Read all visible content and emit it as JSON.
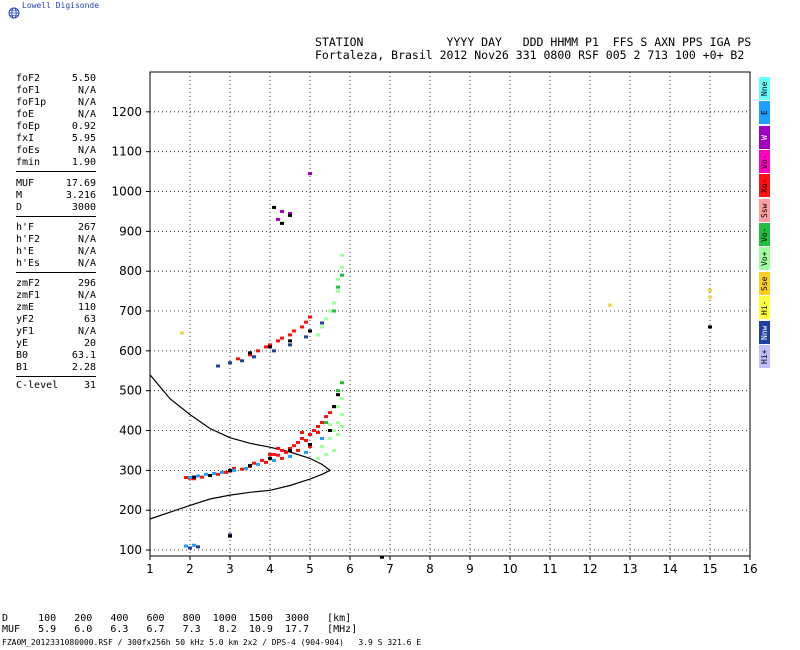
{
  "brand": {
    "name": "Lowell Digisonde",
    "icon": "globe-icon"
  },
  "header": {
    "line1": "STATION            YYYY DAY   DDD HHMM P1  FFS S AXN PPS IGA PS",
    "line2": "Fortaleza, Brasil 2012 Nov26 331 0800 RSF 005 2 713 100 +0+ B2"
  },
  "params": {
    "group1": [
      {
        "key": "foF2",
        "value": "5.50"
      },
      {
        "key": "foF1",
        "value": "N/A"
      },
      {
        "key": "foF1p",
        "value": "N/A"
      },
      {
        "key": "foE",
        "value": "N/A"
      },
      {
        "key": "foEp",
        "value": "0.92"
      },
      {
        "key": "fxI",
        "value": "5.95"
      },
      {
        "key": "foEs",
        "value": "N/A"
      },
      {
        "key": "fmin",
        "value": "1.90"
      }
    ],
    "group2": [
      {
        "key": "MUF",
        "value": "17.69"
      },
      {
        "key": "M",
        "value": "3.216"
      },
      {
        "key": "D",
        "value": "3000"
      }
    ],
    "group3": [
      {
        "key": "h'F",
        "value": "267"
      },
      {
        "key": "h'F2",
        "value": "N/A"
      },
      {
        "key": "h'E",
        "value": "N/A"
      },
      {
        "key": "h'Es",
        "value": "N/A"
      }
    ],
    "group4": [
      {
        "key": "zmF2",
        "value": "296"
      },
      {
        "key": "zmF1",
        "value": "N/A"
      },
      {
        "key": "zmE",
        "value": "110"
      },
      {
        "key": "yF2",
        "value": "63"
      },
      {
        "key": "yF1",
        "value": "N/A"
      },
      {
        "key": "yE",
        "value": "20"
      },
      {
        "key": "B0",
        "value": "63.1"
      },
      {
        "key": "B1",
        "value": "2.28"
      }
    ],
    "group5": [
      {
        "key": "C-level",
        "value": "31"
      }
    ]
  },
  "legend": [
    {
      "label": "Nne",
      "color": "#66ffff"
    },
    {
      "label": "E",
      "color": "#1f9fff"
    },
    {
      "label": "W",
      "color": "#a000c0"
    },
    {
      "label": "Vo-",
      "color": "#ff00c0"
    },
    {
      "label": "Xo-",
      "color": "#ff1010"
    },
    {
      "label": "Ssw",
      "color": "#ff9f9f"
    },
    {
      "label": "Vo-",
      "color": "#1fbf3f"
    },
    {
      "label": "Vo+",
      "color": "#9fff9f"
    },
    {
      "label": "Sse",
      "color": "#ffcf20"
    },
    {
      "label": "Hi-",
      "color": "#ffff3f"
    },
    {
      "label": "Nnw",
      "color": "#1f3f9f"
    },
    {
      "label": "Hi+",
      "color": "#bfbfff"
    }
  ],
  "dmuf": {
    "d_line": "D     100   200   400   600   800  1000  1500  3000   [km]",
    "muf_line": "MUF   5.9   6.0   6.3   6.7   7.3   8.2  10.9  17.7   [MHz]"
  },
  "footer": "FZA0M_2012331080000.RSF / 300fx256h 50 kHz 5.0 km 2x2 / DPS-4 (904-904)   3.9 S 321.6 E",
  "chart_data": {
    "type": "scatter",
    "title": "",
    "xlabel": "",
    "ylabel": "",
    "xlim": [
      1,
      16
    ],
    "ylim": [
      85,
      1300
    ],
    "x_ticks": [
      1,
      2,
      3,
      4,
      5,
      6,
      7,
      8,
      9,
      10,
      11,
      12,
      13,
      14,
      15,
      16
    ],
    "y_ticks": [
      100,
      200,
      300,
      400,
      500,
      600,
      700,
      800,
      900,
      1000,
      1100,
      1200
    ],
    "grid": true,
    "profile_curve": {
      "upper": [
        [
          1.0,
          540
        ],
        [
          1.5,
          480
        ],
        [
          2.0,
          440
        ],
        [
          2.5,
          405
        ],
        [
          3.0,
          382
        ],
        [
          3.5,
          368
        ],
        [
          4.0,
          358
        ],
        [
          4.5,
          346
        ],
        [
          5.0,
          330
        ],
        [
          5.3,
          315
        ],
        [
          5.5,
          300
        ]
      ],
      "lower": [
        [
          1.0,
          178
        ],
        [
          1.5,
          195
        ],
        [
          2.0,
          212
        ],
        [
          2.5,
          228
        ],
        [
          3.0,
          238
        ],
        [
          3.5,
          245
        ],
        [
          4.0,
          250
        ],
        [
          4.5,
          262
        ],
        [
          5.0,
          278
        ],
        [
          5.3,
          290
        ],
        [
          5.5,
          300
        ]
      ]
    },
    "series": [
      {
        "name": "Xo-",
        "color": "#ff1010",
        "points": [
          [
            1.9,
            282
          ],
          [
            2.0,
            280
          ],
          [
            2.1,
            279
          ],
          [
            2.3,
            283
          ],
          [
            2.7,
            290
          ],
          [
            2.9,
            295
          ],
          [
            3.0,
            298
          ],
          [
            3.1,
            305
          ],
          [
            3.3,
            303
          ],
          [
            3.5,
            310
          ],
          [
            3.6,
            318
          ],
          [
            3.8,
            325
          ],
          [
            3.9,
            320
          ],
          [
            4.0,
            330
          ],
          [
            4.1,
            340
          ],
          [
            4.2,
            338
          ],
          [
            4.3,
            350
          ],
          [
            4.4,
            345
          ],
          [
            4.5,
            355
          ],
          [
            4.6,
            362
          ],
          [
            4.7,
            370
          ],
          [
            4.8,
            380
          ],
          [
            4.9,
            375
          ],
          [
            5.0,
            390
          ],
          [
            5.1,
            400
          ],
          [
            5.2,
            410
          ],
          [
            5.3,
            420
          ],
          [
            5.4,
            435
          ],
          [
            5.5,
            445
          ],
          [
            4.0,
            340
          ],
          [
            4.3,
            330
          ],
          [
            4.7,
            350
          ],
          [
            5.0,
            360
          ],
          [
            4.2,
            355
          ],
          [
            4.8,
            395
          ],
          [
            5.2,
            395
          ],
          [
            3.2,
            580
          ],
          [
            3.5,
            590
          ],
          [
            3.7,
            600
          ],
          [
            3.9,
            610
          ],
          [
            4.0,
            615
          ],
          [
            4.2,
            625
          ],
          [
            4.3,
            632
          ],
          [
            4.5,
            640
          ],
          [
            4.6,
            650
          ],
          [
            4.8,
            660
          ],
          [
            4.9,
            672
          ],
          [
            5.0,
            685
          ]
        ]
      },
      {
        "name": "E",
        "color": "#1f9fff",
        "points": [
          [
            2.0,
            282
          ],
          [
            2.2,
            286
          ],
          [
            2.4,
            290
          ],
          [
            2.6,
            292
          ],
          [
            2.8,
            295
          ],
          [
            3.1,
            300
          ],
          [
            3.4,
            305
          ],
          [
            3.7,
            315
          ],
          [
            4.1,
            325
          ],
          [
            4.5,
            335
          ],
          [
            4.9,
            345
          ],
          [
            5.3,
            380
          ],
          [
            1.9,
            110
          ],
          [
            2.1,
            112
          ]
        ]
      },
      {
        "name": "Vo+",
        "color": "#9fff9f",
        "points": [
          [
            5.3,
            360
          ],
          [
            5.5,
            380
          ],
          [
            5.6,
            400
          ],
          [
            5.7,
            420
          ],
          [
            5.8,
            440
          ],
          [
            5.7,
            460
          ],
          [
            5.8,
            480
          ],
          [
            5.6,
            350
          ],
          [
            5.4,
            340
          ],
          [
            5.2,
            330
          ],
          [
            5.5,
            415
          ],
          [
            5.7,
            390
          ],
          [
            5.8,
            410
          ],
          [
            5.2,
            640
          ],
          [
            5.3,
            660
          ],
          [
            5.4,
            680
          ],
          [
            5.5,
            700
          ],
          [
            5.6,
            720
          ],
          [
            5.7,
            750
          ],
          [
            5.7,
            780
          ],
          [
            5.8,
            810
          ],
          [
            5.8,
            840
          ]
        ]
      },
      {
        "name": "Vo-",
        "color": "#1fbf3f",
        "points": [
          [
            5.4,
            420
          ],
          [
            5.6,
            460
          ],
          [
            5.7,
            500
          ],
          [
            5.8,
            520
          ],
          [
            5.6,
            700
          ],
          [
            5.7,
            760
          ],
          [
            5.8,
            790
          ]
        ]
      },
      {
        "name": "Nnw",
        "color": "#1f3f9f",
        "points": [
          [
            2.7,
            562
          ],
          [
            3.0,
            570
          ],
          [
            3.3,
            575
          ],
          [
            3.6,
            585
          ],
          [
            4.1,
            600
          ],
          [
            4.5,
            615
          ],
          [
            4.9,
            635
          ],
          [
            5.3,
            670
          ],
          [
            2.0,
            105
          ],
          [
            2.2,
            108
          ],
          [
            3.0,
            138
          ]
        ]
      },
      {
        "name": "W",
        "color": "#a000c0",
        "points": [
          [
            4.3,
            950
          ],
          [
            4.5,
            945
          ],
          [
            5.0,
            1045
          ],
          [
            4.2,
            930
          ]
        ]
      },
      {
        "name": "Vo+",
        "color": "#e8d84a",
        "points": [
          [
            1.8,
            645
          ],
          [
            12.5,
            715
          ],
          [
            15.0,
            752
          ],
          [
            15.0,
            735
          ]
        ]
      },
      {
        "name": "Nne",
        "color": "#000000",
        "points": [
          [
            2.1,
            283
          ],
          [
            2.5,
            287
          ],
          [
            3.0,
            300
          ],
          [
            3.5,
            312
          ],
          [
            4.0,
            330
          ],
          [
            4.5,
            350
          ],
          [
            5.0,
            365
          ],
          [
            5.5,
            400
          ],
          [
            5.6,
            460
          ],
          [
            5.7,
            490
          ],
          [
            3.5,
            595
          ],
          [
            4.0,
            610
          ],
          [
            4.5,
            625
          ],
          [
            5.0,
            650
          ],
          [
            4.1,
            960
          ],
          [
            4.3,
            920
          ],
          [
            4.5,
            940
          ],
          [
            3.0,
            135
          ],
          [
            6.8,
            82
          ],
          [
            15.0,
            660
          ]
        ]
      }
    ]
  }
}
